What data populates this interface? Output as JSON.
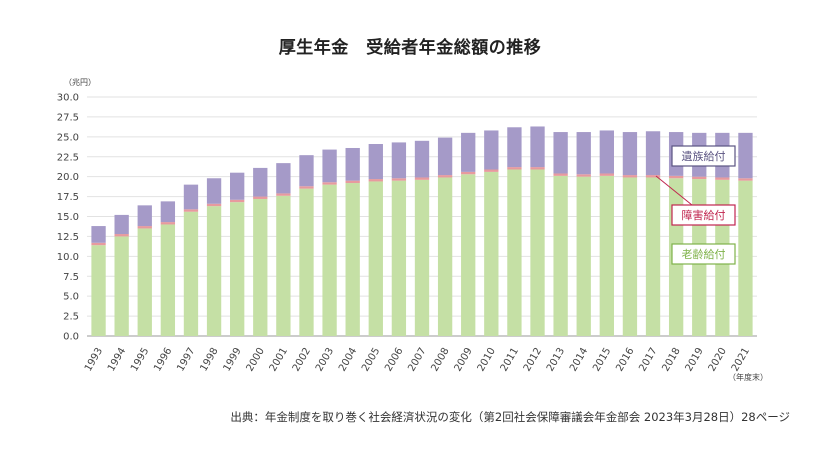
{
  "chart_data": {
    "type": "bar",
    "stacked": true,
    "title": "厚生年金　受給者年金総額の推移",
    "y_unit_label": "（兆円）",
    "x_unit_label": "（年度末）",
    "ylim": [
      0,
      30
    ],
    "yticks": [
      "0.0",
      "2.5",
      "5.0",
      "7.5",
      "10.0",
      "12.5",
      "15.0",
      "17.5",
      "20.0",
      "22.5",
      "25.0",
      "27.5",
      "30.0"
    ],
    "grid": true,
    "categories": [
      "1993",
      "1994",
      "1995",
      "1996",
      "1997",
      "1998",
      "1999",
      "2000",
      "2001",
      "2002",
      "2003",
      "2004",
      "2005",
      "2006",
      "2007",
      "2008",
      "2009",
      "2010",
      "2011",
      "2012",
      "2013",
      "2014",
      "2015",
      "2016",
      "2017",
      "2018",
      "2019",
      "2020",
      "2021"
    ],
    "series": [
      {
        "name": "老齢給付",
        "color": "#c5e0a5",
        "values": [
          11.4,
          12.5,
          13.5,
          14.0,
          15.6,
          16.3,
          16.8,
          17.2,
          17.6,
          18.5,
          19.0,
          19.2,
          19.4,
          19.5,
          19.6,
          19.9,
          20.3,
          20.6,
          20.9,
          20.9,
          20.1,
          20.0,
          20.1,
          19.9,
          19.9,
          19.8,
          19.7,
          19.6,
          19.5
        ]
      },
      {
        "name": "障害給付",
        "color": "#e79a9e",
        "values": [
          0.3,
          0.3,
          0.3,
          0.3,
          0.3,
          0.3,
          0.3,
          0.3,
          0.3,
          0.3,
          0.3,
          0.3,
          0.3,
          0.3,
          0.3,
          0.3,
          0.3,
          0.3,
          0.3,
          0.3,
          0.3,
          0.3,
          0.3,
          0.3,
          0.3,
          0.3,
          0.3,
          0.3,
          0.3
        ]
      },
      {
        "name": "遺族給付",
        "color": "#a59ac8",
        "values": [
          2.1,
          2.4,
          2.6,
          2.6,
          3.1,
          3.2,
          3.4,
          3.6,
          3.8,
          3.9,
          4.1,
          4.1,
          4.4,
          4.5,
          4.6,
          4.7,
          4.9,
          4.9,
          5.0,
          5.1,
          5.2,
          5.3,
          5.4,
          5.4,
          5.5,
          5.5,
          5.5,
          5.6,
          5.7
        ]
      }
    ],
    "legend": [
      {
        "label": "遺族給付",
        "color": "#5b5482"
      },
      {
        "label": "障害給付",
        "color": "#c0264f"
      },
      {
        "label": "老齢給付",
        "color": "#7fb24a"
      }
    ]
  },
  "source": "出典：年金制度を取り巻く社会経済状況の変化（第2回社会保障審議会年金部会 2023年3月28日）28ページ"
}
